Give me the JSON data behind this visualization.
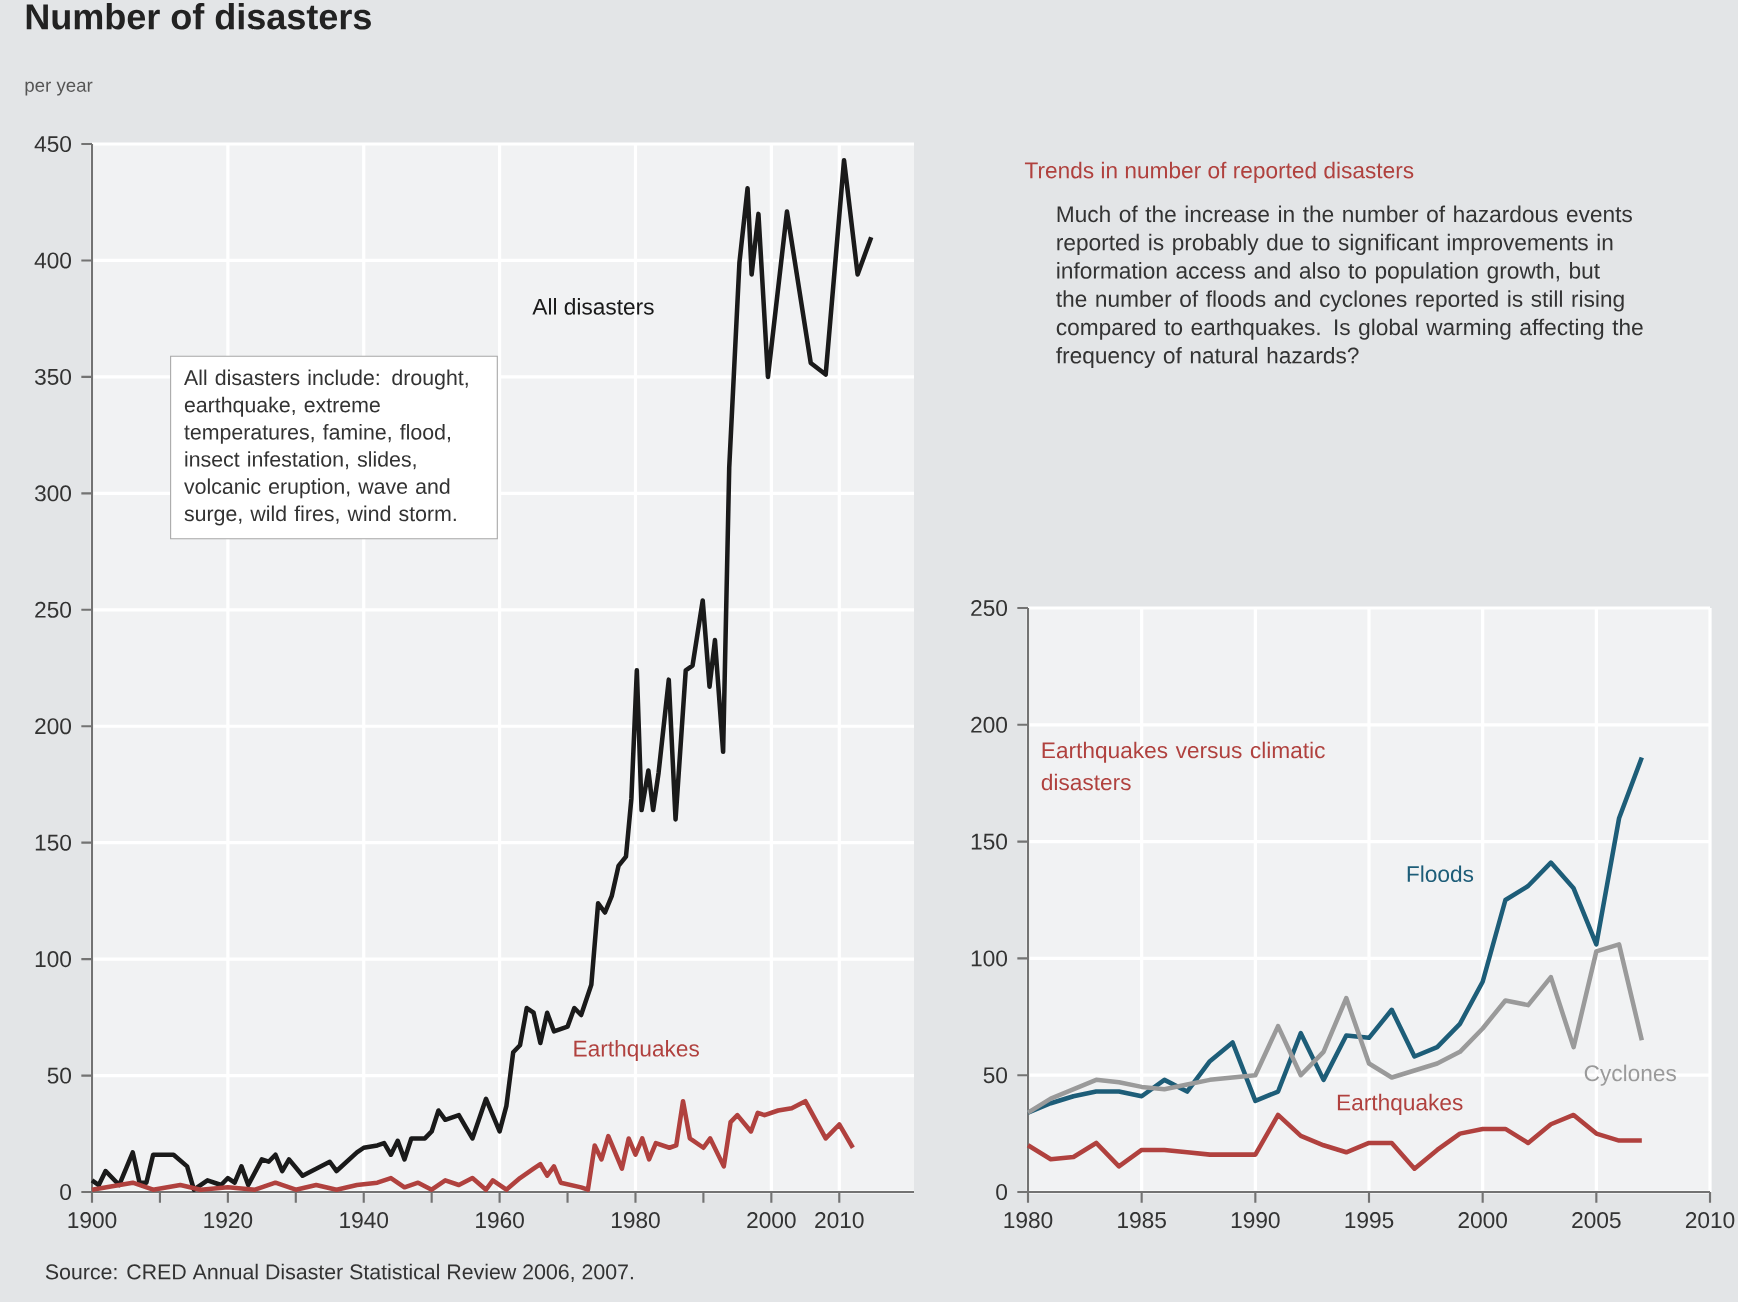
{
  "chart_data": [
    {
      "type": "line",
      "title": "Number of disasters",
      "subtitle": "per year",
      "annotations": [
        "All disasters include: drought, earthquake, extreme temperatures, famine, flood, insect infestation, slides, volcanic eruption, wave and surge, wild fires, wind storm.",
        "Source: CRED Annual Disaster Statistical Review 2006, 2007."
      ],
      "xlim": [
        1900,
        2021
      ],
      "ylim": [
        0,
        450
      ],
      "xticks": [
        1900,
        {
          "value": 1910,
          "label": null
        },
        1920,
        {
          "value": 1930,
          "label": null
        },
        1940,
        {
          "value": 1950,
          "label": null
        },
        1960,
        {
          "value": 1970,
          "label": null
        },
        1980,
        {
          "value": 1990,
          "label": null
        },
        2000,
        2010
      ],
      "yticks": [
        0,
        50,
        100,
        150,
        200,
        250,
        300,
        350,
        400,
        450
      ],
      "grid": true,
      "series": [
        {
          "name": "All disasters",
          "color": "#1a1a1a",
          "x": [
            1900,
            1901,
            1902,
            1904,
            1906,
            1907,
            1908,
            1909,
            1912,
            1914,
            1915,
            1917,
            1919,
            1920,
            1921,
            1922,
            1923,
            1925,
            1926,
            1927,
            1928,
            1929,
            1931,
            1933,
            1935,
            1936,
            1939,
            1940,
            1942,
            1943,
            1944,
            1945,
            1946,
            1947,
            1949,
            1950,
            1951,
            1952,
            1954,
            1955,
            1956,
            1958,
            1960,
            1961,
            1962,
            1963,
            1964,
            1965,
            1966,
            1967,
            1968,
            1970,
            1971,
            1972,
            1973.5,
            1974.5,
            1975.5,
            1976.5,
            1977.5,
            1978.6,
            1979.4,
            1980.2,
            1980.9,
            1981.9,
            1982.6,
            1983.4,
            1984.9,
            1985.9,
            1987.4,
            1988.4,
            1989.9,
            1990.9,
            1991.7,
            1992.9,
            1993.8,
            1995.3,
            1996.5,
            1997.1,
            1998.1,
            1999.5,
            2002.3,
            2005.8,
            2008,
            2010.7,
            2012.7,
            2014.7
          ],
          "values": [
            5,
            3,
            9,
            3,
            17,
            4,
            4,
            16,
            16,
            11,
            1,
            5,
            3,
            6,
            4,
            11,
            3,
            14,
            13,
            16,
            9,
            14,
            7,
            10,
            13,
            9,
            17,
            19,
            20,
            21,
            16,
            22,
            14,
            23,
            23,
            26,
            35,
            31,
            33,
            28,
            23,
            40,
            26,
            37,
            60,
            63,
            79,
            77,
            64,
            77,
            69,
            71,
            79,
            76,
            89,
            124,
            120,
            127,
            140,
            144,
            169,
            224,
            164,
            181,
            164,
            180,
            220,
            160,
            224,
            226,
            254,
            217,
            237,
            189,
            311,
            399,
            431,
            394,
            420,
            350,
            421,
            356,
            351,
            443,
            394,
            410
          ]
        },
        {
          "name": "Earthquakes",
          "color": "#b0413e",
          "x": [
            1900,
            1906,
            1909,
            1913,
            1916,
            1920,
            1924,
            1927,
            1930,
            1933,
            1936,
            1939,
            1942,
            1944,
            1946,
            1948,
            1950,
            1952,
            1954,
            1956,
            1958,
            1959,
            1961,
            1963,
            1965,
            1966,
            1967,
            1968,
            1969,
            1972,
            1973,
            1974,
            1975,
            1976,
            1978,
            1979,
            1980,
            1981,
            1982,
            1983,
            1985,
            1986,
            1987,
            1988,
            1990,
            1991,
            1993,
            1994,
            1995,
            1997,
            1998,
            1999,
            2001,
            2003,
            2005,
            2008,
            2010,
            2012
          ],
          "values": [
            1,
            4,
            1,
            3,
            1,
            2,
            1,
            4,
            1,
            3,
            1,
            3,
            4,
            6,
            2,
            4,
            1,
            5,
            3,
            6,
            1,
            5,
            1,
            6,
            10,
            12,
            7,
            11,
            4,
            2,
            1,
            20,
            14,
            24,
            10,
            23,
            16,
            23,
            14,
            21,
            19,
            20,
            39,
            23,
            19,
            23,
            11,
            30,
            33,
            26,
            34,
            33,
            35,
            36,
            39,
            23,
            29,
            19
          ]
        }
      ]
    },
    {
      "type": "line",
      "title": "Earthquakes versus climatic disasters",
      "annotations": [
        "Trends in number of reported disasters",
        "Much of the increase in the number of hazardous events reported is probably due to significant improvements in information access and also to population growth, but the number of floods and cyclones reported is still rising compared to earthquakes. Is global warming affecting the frequency of natural hazards?"
      ],
      "x": [
        1980,
        1981,
        1982,
        1983,
        1984,
        1985,
        1986,
        1987,
        1988,
        1989,
        1990,
        1991,
        1992,
        1993,
        1994,
        1995,
        1996,
        1997,
        1998,
        1999,
        2000,
        2001,
        2002,
        2003,
        2004,
        2005,
        2006,
        2007
      ],
      "xlim": [
        1980,
        2010
      ],
      "ylim": [
        0,
        250
      ],
      "xticks": [
        1980,
        1985,
        1990,
        1995,
        2000,
        2005,
        2010
      ],
      "yticks": [
        0,
        50,
        100,
        150,
        200,
        250
      ],
      "grid": true,
      "series": [
        {
          "name": "Floods",
          "color": "#1d5d78",
          "values": [
            34,
            38,
            41,
            43,
            43,
            41,
            48,
            43,
            56,
            64,
            39,
            43,
            68,
            48,
            67,
            66,
            78,
            58,
            62,
            72,
            90,
            125,
            131,
            141,
            130,
            106,
            160,
            186
          ]
        },
        {
          "name": "Cyclones",
          "color": "#9a9a9a",
          "values": [
            34,
            40,
            44,
            48,
            47,
            45,
            44,
            46,
            48,
            49,
            50,
            71,
            50,
            60,
            83,
            55,
            49,
            52,
            55,
            60,
            70,
            82,
            80,
            92,
            62,
            103,
            106,
            65
          ]
        },
        {
          "name": "Earthquakes",
          "color": "#b0413e",
          "values": [
            20,
            14,
            15,
            21,
            11,
            18,
            18,
            17,
            16,
            16,
            16,
            33,
            24,
            20,
            17,
            21,
            21,
            10,
            18,
            25,
            27,
            27,
            21,
            29,
            33,
            25,
            22,
            22
          ]
        }
      ]
    }
  ]
}
